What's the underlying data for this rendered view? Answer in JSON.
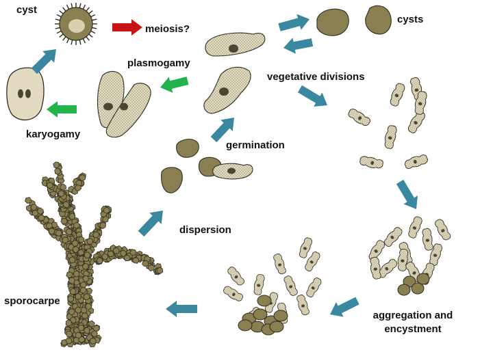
{
  "labels": {
    "cyst": "cyst",
    "meiosis": "meiosis?",
    "cysts": "cysts",
    "plasmogamy": "plasmogamy",
    "karyogamy": "karyogamy",
    "vegetative_divisions": "vegetative divisions",
    "germination": "germination",
    "dispersion": "dispersion",
    "sporocarpe": "sporocarpe",
    "aggregation_line1": "aggregation and",
    "aggregation_line2": "encystment"
  },
  "colors": {
    "arrow_blue": "#3a87a0",
    "arrow_green": "#22b34c",
    "arrow_red": "#c81414",
    "cell_fill": "#e2dbc2",
    "cyst_fill": "#8a7f50",
    "nucleus": "#4a4632",
    "outline": "#2d2b1e"
  }
}
